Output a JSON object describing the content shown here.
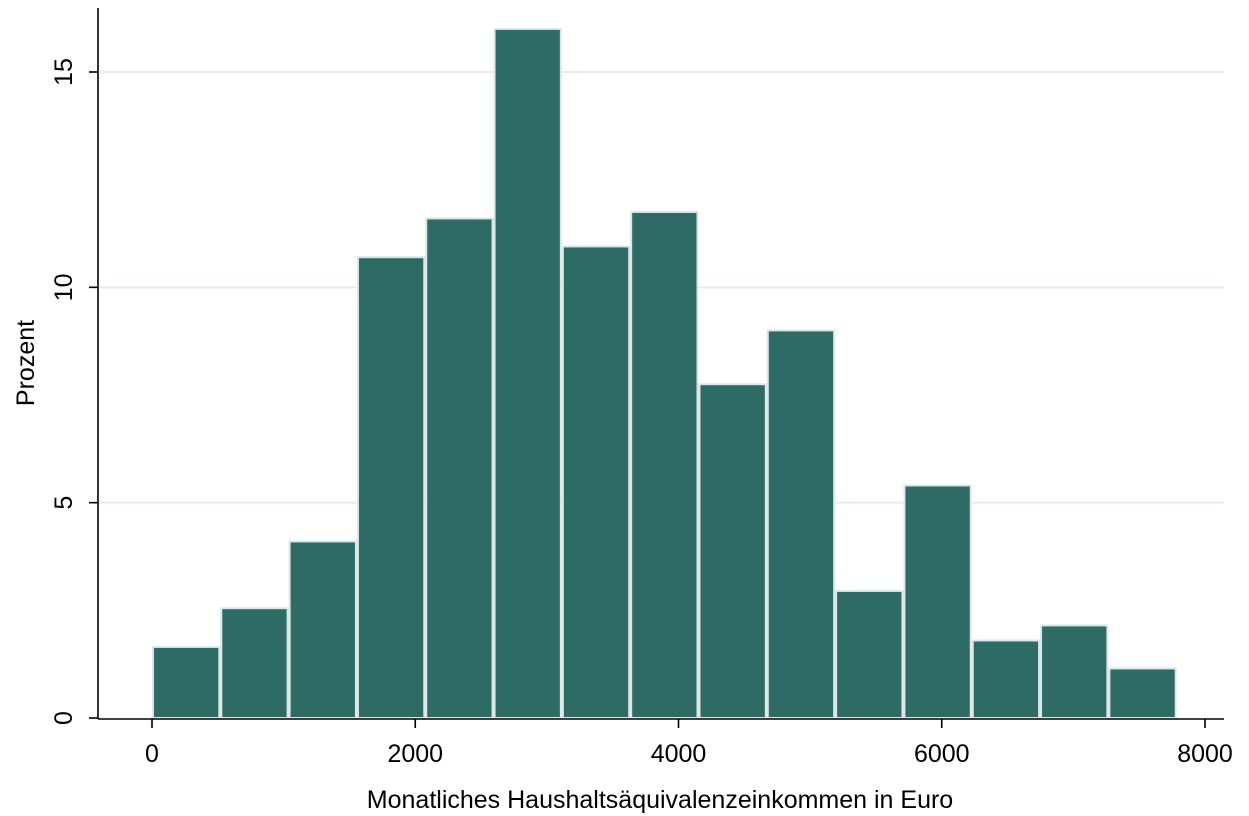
{
  "chart_data": {
    "type": "bar",
    "title": "",
    "xlabel": "Monatliches Haushaltsäquivalenzeinkommen in Euro",
    "ylabel": "Prozent",
    "xlim": [
      -500,
      8000
    ],
    "ylim": [
      0,
      16.3
    ],
    "x_ticks": [
      0,
      2000,
      4000,
      6000,
      8000
    ],
    "x_tick_labels": [
      "0",
      "2000",
      "4000",
      "6000",
      "8000"
    ],
    "y_ticks": [
      0,
      5,
      10,
      15
    ],
    "y_tick_labels": [
      "0",
      "5",
      "10",
      "15"
    ],
    "grid": true,
    "bin_width": 519,
    "bins": [
      {
        "x0": 0,
        "x1": 519,
        "value": 1.65
      },
      {
        "x0": 519,
        "x1": 1038,
        "value": 2.55
      },
      {
        "x0": 1038,
        "x1": 1557,
        "value": 4.1
      },
      {
        "x0": 1557,
        "x1": 2076,
        "value": 10.7
      },
      {
        "x0": 2076,
        "x1": 2595,
        "value": 11.6
      },
      {
        "x0": 2595,
        "x1": 3114,
        "value": 16.0
      },
      {
        "x0": 3114,
        "x1": 3633,
        "value": 10.95
      },
      {
        "x0": 3633,
        "x1": 4152,
        "value": 11.75
      },
      {
        "x0": 4152,
        "x1": 4671,
        "value": 7.75
      },
      {
        "x0": 4671,
        "x1": 5190,
        "value": 9.0
      },
      {
        "x0": 5190,
        "x1": 5709,
        "value": 2.95
      },
      {
        "x0": 5709,
        "x1": 6228,
        "value": 5.4
      },
      {
        "x0": 6228,
        "x1": 6747,
        "value": 1.8
      },
      {
        "x0": 6747,
        "x1": 7266,
        "value": 2.15
      },
      {
        "x0": 7266,
        "x1": 7785,
        "value": 1.15
      }
    ],
    "bar_color": "#2e6b65"
  }
}
